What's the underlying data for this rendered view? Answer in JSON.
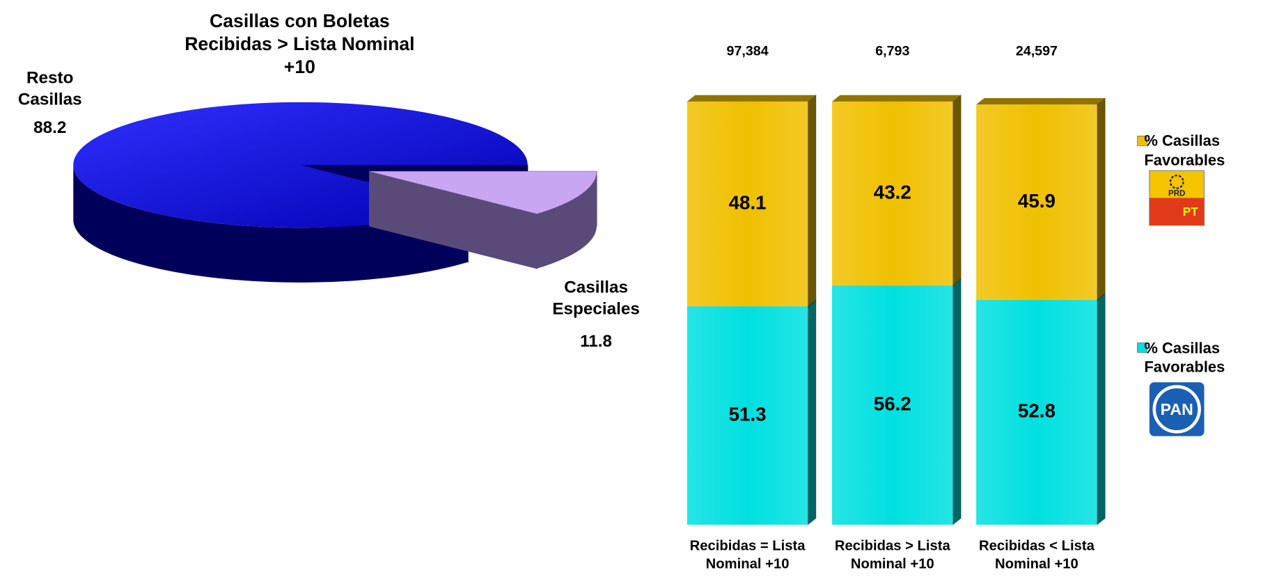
{
  "chart_data": [
    {
      "type": "pie3d",
      "title": "Casillas con Boletas Recibidas > Lista Nominal +10",
      "labels": [
        "Resto Casillas",
        "Casillas Especiales"
      ],
      "values": [
        88.2,
        11.8
      ],
      "colors": [
        "#1a1aff",
        "#c9a6f2"
      ]
    },
    {
      "type": "stacked_bar3d",
      "categories": [
        "Recibidas = Lista Nominal +10",
        "Recibidas > Lista Nominal +10",
        "Recibidas < Lista Nominal +10"
      ],
      "totals": [
        {
          "value": 97384,
          "label": "97,384"
        },
        {
          "value": 6793,
          "label": "6,793"
        },
        {
          "value": 24597,
          "label": "24,597"
        }
      ],
      "ylim": [
        0,
        100
      ],
      "series": [
        {
          "name": "% Casillas Favorables",
          "color": "#00e0e0",
          "values": [
            51.3,
            56.2,
            52.8
          ],
          "logo_labels": [
            "PAN"
          ]
        },
        {
          "name": "% Casillas Favorables",
          "color": "#f0c000",
          "values": [
            48.1,
            43.2,
            45.9
          ],
          "logo_labels": [
            "PRD",
            "PT"
          ]
        }
      ]
    }
  ]
}
